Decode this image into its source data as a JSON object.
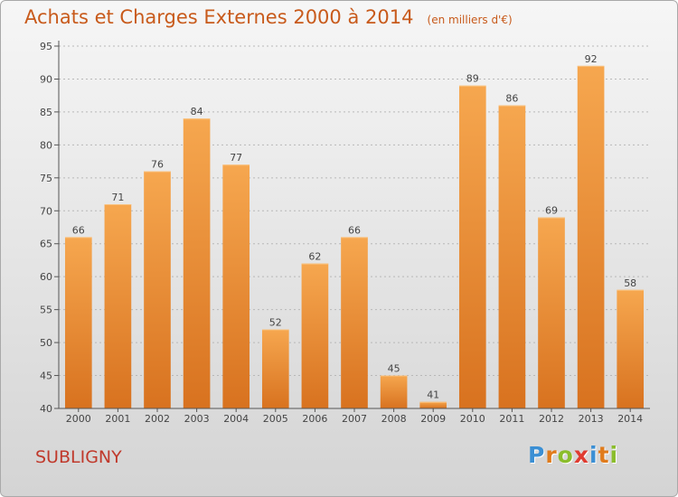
{
  "chart_data": {
    "type": "bar",
    "title": "Achats et Charges Externes 2000 à 2014",
    "subtitle": "(en milliers d'€)",
    "categories": [
      "2000",
      "2001",
      "2002",
      "2003",
      "2004",
      "2005",
      "2006",
      "2007",
      "2008",
      "2009",
      "2010",
      "2011",
      "2012",
      "2013",
      "2014"
    ],
    "values": [
      66,
      71,
      76,
      84,
      77,
      52,
      62,
      66,
      45,
      41,
      89,
      86,
      69,
      92,
      58
    ],
    "ylim": [
      40,
      95
    ],
    "yticks": [
      40,
      45,
      50,
      55,
      60,
      65,
      70,
      75,
      80,
      85,
      90,
      95
    ],
    "grid": true,
    "bar_color_top": "#f6a74f",
    "bar_color_bottom": "#d8721f"
  },
  "footer": {
    "commune": "SUBLIGNY",
    "logo_letters": [
      {
        "char": "P",
        "color": "#3b8fd4"
      },
      {
        "char": "r",
        "color": "#e07b1c"
      },
      {
        "char": "o",
        "color": "#8bbd2c"
      },
      {
        "char": "x",
        "color": "#e03c31"
      },
      {
        "char": "i",
        "color": "#3b8fd4"
      },
      {
        "char": "t",
        "color": "#e07b1c"
      },
      {
        "char": "i",
        "color": "#8bbd2c"
      }
    ]
  }
}
